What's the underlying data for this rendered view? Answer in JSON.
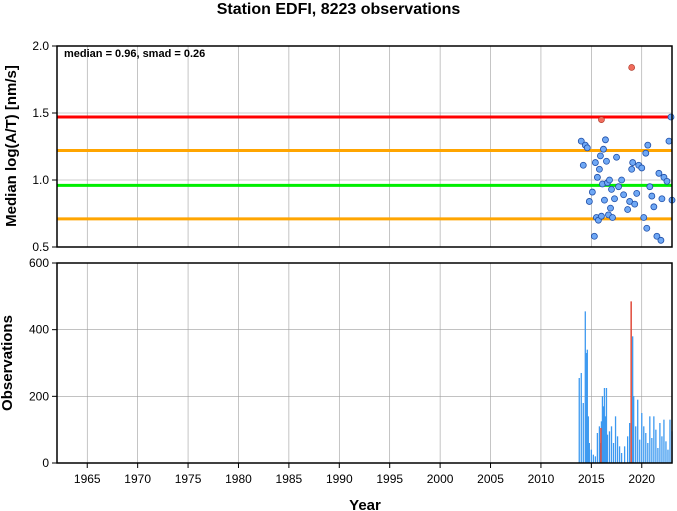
{
  "chart_data": [
    {
      "type": "scatter",
      "title": "Station EDFI, 8223 observations",
      "ylabel": "Median log(A/T) [nm/s]",
      "xlim": [
        1962,
        2023
      ],
      "ylim": [
        0.5,
        2.0
      ],
      "y_ticks": [
        "0.5",
        "1.0",
        "1.5",
        "2.0"
      ],
      "grid": true,
      "annotation": "median = 0.96, smad = 0.26",
      "reference_lines": [
        {
          "value": 1.47,
          "color": "#ff0000"
        },
        {
          "value": 1.22,
          "color": "#ffa500"
        },
        {
          "value": 0.96,
          "color": "#00ee00"
        },
        {
          "value": 0.71,
          "color": "#ffa500"
        }
      ],
      "points": [
        {
          "x": 2014.0,
          "y": 1.29
        },
        {
          "x": 2014.2,
          "y": 1.11
        },
        {
          "x": 2014.4,
          "y": 1.26
        },
        {
          "x": 2014.6,
          "y": 1.24
        },
        {
          "x": 2014.8,
          "y": 0.84
        },
        {
          "x": 2015.1,
          "y": 0.91
        },
        {
          "x": 2015.3,
          "y": 0.58
        },
        {
          "x": 2015.4,
          "y": 1.13
        },
        {
          "x": 2015.5,
          "y": 0.72
        },
        {
          "x": 2015.6,
          "y": 1.02
        },
        {
          "x": 2015.7,
          "y": 0.7
        },
        {
          "x": 2015.8,
          "y": 1.08
        },
        {
          "x": 2015.9,
          "y": 1.18
        },
        {
          "x": 2016.0,
          "y": 0.73
        },
        {
          "x": 2016.1,
          "y": 0.97
        },
        {
          "x": 2016.2,
          "y": 1.23
        },
        {
          "x": 2016.3,
          "y": 0.85
        },
        {
          "x": 2016.4,
          "y": 1.3
        },
        {
          "x": 2016.5,
          "y": 1.14
        },
        {
          "x": 2016.6,
          "y": 0.98
        },
        {
          "x": 2016.7,
          "y": 0.74
        },
        {
          "x": 2016.8,
          "y": 1.0
        },
        {
          "x": 2016.9,
          "y": 0.79
        },
        {
          "x": 2017.0,
          "y": 0.93
        },
        {
          "x": 2017.1,
          "y": 0.72
        },
        {
          "x": 2017.3,
          "y": 0.86
        },
        {
          "x": 2017.5,
          "y": 1.17
        },
        {
          "x": 2017.7,
          "y": 0.95
        },
        {
          "x": 2018.0,
          "y": 1.0
        },
        {
          "x": 2018.2,
          "y": 0.89
        },
        {
          "x": 2018.6,
          "y": 0.78
        },
        {
          "x": 2018.8,
          "y": 0.84
        },
        {
          "x": 2019.0,
          "y": 1.08
        },
        {
          "x": 2019.1,
          "y": 1.13
        },
        {
          "x": 2019.3,
          "y": 0.82
        },
        {
          "x": 2019.5,
          "y": 0.9
        },
        {
          "x": 2019.7,
          "y": 1.11
        },
        {
          "x": 2020.0,
          "y": 1.09
        },
        {
          "x": 2020.2,
          "y": 0.72
        },
        {
          "x": 2020.4,
          "y": 1.2
        },
        {
          "x": 2020.5,
          "y": 0.64
        },
        {
          "x": 2020.6,
          "y": 1.26
        },
        {
          "x": 2020.8,
          "y": 0.95
        },
        {
          "x": 2021.0,
          "y": 0.88
        },
        {
          "x": 2021.2,
          "y": 0.8
        },
        {
          "x": 2021.5,
          "y": 0.58
        },
        {
          "x": 2021.7,
          "y": 1.05
        },
        {
          "x": 2021.9,
          "y": 0.55
        },
        {
          "x": 2022.0,
          "y": 0.86
        },
        {
          "x": 2022.2,
          "y": 1.02
        },
        {
          "x": 2022.5,
          "y": 0.99
        },
        {
          "x": 2022.7,
          "y": 1.29
        },
        {
          "x": 2023.0,
          "y": 0.85
        },
        {
          "x": 2022.9,
          "y": 1.47
        }
      ],
      "outlier_points": [
        {
          "x": 2016.0,
          "y": 1.45
        },
        {
          "x": 2019.0,
          "y": 1.84
        }
      ]
    },
    {
      "type": "bar",
      "ylabel": "Observations",
      "xlabel": "Year",
      "xlim": [
        1962,
        2023
      ],
      "ylim": [
        0,
        600
      ],
      "x_ticks": [
        "1965",
        "1970",
        "1975",
        "1980",
        "1985",
        "1990",
        "1995",
        "2000",
        "2005",
        "2010",
        "2015",
        "2020"
      ],
      "y_ticks": [
        "0",
        "200",
        "400",
        "600"
      ],
      "grid": true,
      "bars": [
        {
          "x": 2013.8,
          "value": 255
        },
        {
          "x": 2014.0,
          "value": 270
        },
        {
          "x": 2014.2,
          "value": 180
        },
        {
          "x": 2014.4,
          "value": 455
        },
        {
          "x": 2014.5,
          "value": 330
        },
        {
          "x": 2014.6,
          "value": 340
        },
        {
          "x": 2014.7,
          "value": 140
        },
        {
          "x": 2014.8,
          "value": 60
        },
        {
          "x": 2015.0,
          "value": 40
        },
        {
          "x": 2015.2,
          "value": 25
        },
        {
          "x": 2015.4,
          "value": 20
        },
        {
          "x": 2015.6,
          "value": 90
        },
        {
          "x": 2015.8,
          "value": 110
        },
        {
          "x": 2015.9,
          "value": 60
        },
        {
          "x": 2016.0,
          "value": 125
        },
        {
          "x": 2016.1,
          "value": 200
        },
        {
          "x": 2016.2,
          "value": 170
        },
        {
          "x": 2016.3,
          "value": 225
        },
        {
          "x": 2016.4,
          "value": 140
        },
        {
          "x": 2016.5,
          "value": 225
        },
        {
          "x": 2016.6,
          "value": 85
        },
        {
          "x": 2016.8,
          "value": 95
        },
        {
          "x": 2017.0,
          "value": 110
        },
        {
          "x": 2017.2,
          "value": 60
        },
        {
          "x": 2017.4,
          "value": 140
        },
        {
          "x": 2017.6,
          "value": 80
        },
        {
          "x": 2017.8,
          "value": 50
        },
        {
          "x": 2018.0,
          "value": 30
        },
        {
          "x": 2018.3,
          "value": 50
        },
        {
          "x": 2018.6,
          "value": 80
        },
        {
          "x": 2018.8,
          "value": 120
        },
        {
          "x": 2019.1,
          "value": 380
        },
        {
          "x": 2019.2,
          "value": 200
        },
        {
          "x": 2019.4,
          "value": 110
        },
        {
          "x": 2019.6,
          "value": 190
        },
        {
          "x": 2019.8,
          "value": 70
        },
        {
          "x": 2020.0,
          "value": 150
        },
        {
          "x": 2020.2,
          "value": 110
        },
        {
          "x": 2020.4,
          "value": 90
        },
        {
          "x": 2020.6,
          "value": 60
        },
        {
          "x": 2020.8,
          "value": 140
        },
        {
          "x": 2021.0,
          "value": 75
        },
        {
          "x": 2021.2,
          "value": 140
        },
        {
          "x": 2021.4,
          "value": 100
        },
        {
          "x": 2021.6,
          "value": 45
        },
        {
          "x": 2021.8,
          "value": 120
        },
        {
          "x": 2022.0,
          "value": 80
        },
        {
          "x": 2022.2,
          "value": 130
        },
        {
          "x": 2022.4,
          "value": 65
        },
        {
          "x": 2022.6,
          "value": 40
        },
        {
          "x": 2022.8,
          "value": 130
        },
        {
          "x": 2023.0,
          "value": 95
        }
      ],
      "outlier_bars": [
        {
          "x": 2015.95,
          "value": 105
        },
        {
          "x": 2018.95,
          "value": 485
        }
      ]
    }
  ],
  "colors": {
    "point_fill": "#6fa8f5",
    "point_stroke": "#1f4fa8",
    "outlier_fill": "#f06c5c",
    "bar": "#3c99f0",
    "outlier_bar": "#e04a3a",
    "grid": "#9e9e9e"
  }
}
